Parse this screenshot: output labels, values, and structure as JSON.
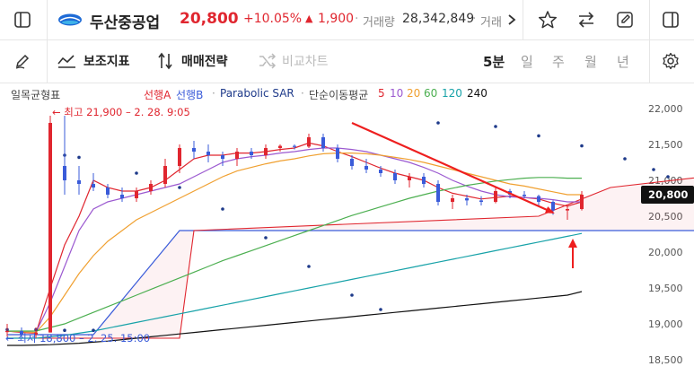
{
  "header": {
    "stock_name": "두산중공업",
    "price": "20,800",
    "change_pct": "+10.05%",
    "change_abs": "1,900",
    "volume_label": "거래량",
    "volume_value": "28,342,849",
    "amount_label": "거래"
  },
  "toolbar": {
    "indicators_label": "보조지표",
    "strategy_label": "매매전략",
    "compare_label": "비교차트",
    "periods": [
      "5분",
      "일",
      "주",
      "월",
      "년"
    ],
    "active_period": "5분"
  },
  "chart_data": {
    "type": "candlestick",
    "legend": {
      "ichimoku": "일목균형표",
      "span_a": "선행A",
      "span_b": "선행B",
      "sar": "Parabolic SAR",
      "sma_title": "단순이동평균",
      "sma_periods": [
        "5",
        "10",
        "20",
        "60",
        "120",
        "240"
      ]
    },
    "annotations": {
      "high": "← 최고 21,900 – 2. 28. 9:05",
      "low": "← 최저 18,800 – 2. 25. 15:00"
    },
    "current_price_label": "20,800",
    "ylim": [
      18400,
      22300
    ],
    "yticks": [
      "22,000",
      "21,500",
      "21,000",
      "20,500",
      "20,000",
      "19,500",
      "19,000",
      "18,500"
    ],
    "ytick_values": [
      22000,
      21500,
      21000,
      20500,
      20000,
      19500,
      19000,
      18500
    ],
    "candles": [
      [
        18900,
        19000,
        18820,
        18900
      ],
      [
        18900,
        18950,
        18820,
        18850
      ],
      [
        18850,
        18950,
        18800,
        18880
      ],
      [
        18880,
        21900,
        18880,
        21800
      ],
      [
        21200,
        21900,
        20800,
        21000
      ],
      [
        21000,
        21200,
        20800,
        20950
      ],
      [
        20950,
        21100,
        20850,
        20900
      ],
      [
        20900,
        20950,
        20750,
        20800
      ],
      [
        20800,
        20900,
        20700,
        20750
      ],
      [
        20750,
        20900,
        20700,
        20850
      ],
      [
        20850,
        21000,
        20800,
        20950
      ],
      [
        20950,
        21300,
        20900,
        21200
      ],
      [
        21200,
        21500,
        21100,
        21450
      ],
      [
        21450,
        21550,
        21300,
        21400
      ],
      [
        21400,
        21500,
        21250,
        21350
      ],
      [
        21350,
        21400,
        21200,
        21300
      ],
      [
        21300,
        21450,
        21200,
        21400
      ],
      [
        21400,
        21450,
        21300,
        21350
      ],
      [
        21350,
        21500,
        21300,
        21450
      ],
      [
        21450,
        21500,
        21400,
        21480
      ],
      [
        21480,
        21500,
        21430,
        21470
      ],
      [
        21470,
        21650,
        21450,
        21600
      ],
      [
        21600,
        21650,
        21400,
        21450
      ],
      [
        21450,
        21500,
        21250,
        21300
      ],
      [
        21300,
        21350,
        21150,
        21200
      ],
      [
        21200,
        21300,
        21100,
        21150
      ],
      [
        21150,
        21200,
        21050,
        21100
      ],
      [
        21100,
        21150,
        20950,
        21000
      ],
      [
        21000,
        21100,
        20900,
        21050
      ],
      [
        21050,
        21100,
        20900,
        20950
      ],
      [
        20950,
        21000,
        20650,
        20700
      ],
      [
        20700,
        20800,
        20600,
        20750
      ],
      [
        20750,
        20800,
        20650,
        20720
      ],
      [
        20720,
        20780,
        20650,
        20700
      ],
      [
        20700,
        20900,
        20680,
        20850
      ],
      [
        20850,
        20880,
        20750,
        20800
      ],
      [
        20800,
        20850,
        20750,
        20780
      ],
      [
        20780,
        20800,
        20650,
        20700
      ],
      [
        20700,
        20720,
        20520,
        20580
      ],
      [
        20580,
        20650,
        20450,
        20600
      ],
      [
        20600,
        20850,
        20580,
        20800
      ]
    ],
    "sar": [
      [
        21350,
        4
      ],
      [
        21320,
        5
      ],
      [
        21100,
        9
      ],
      [
        20900,
        12
      ],
      [
        20600,
        15
      ],
      [
        20200,
        18
      ],
      [
        19800,
        21
      ],
      [
        19400,
        24
      ],
      [
        19200,
        26
      ],
      [
        21800,
        30
      ],
      [
        21750,
        34
      ],
      [
        21620,
        37
      ],
      [
        21480,
        40
      ],
      [
        21300,
        43
      ],
      [
        21150,
        45
      ],
      [
        21050,
        46
      ],
      [
        20950,
        48
      ],
      [
        20880,
        51
      ],
      [
        20850,
        54
      ],
      [
        20820,
        57
      ],
      [
        20800,
        60
      ],
      [
        20780,
        63
      ],
      [
        20760,
        66
      ],
      [
        20740,
        69
      ]
    ],
    "sar_early": [
      [
        18920,
        0
      ],
      [
        18920,
        2
      ],
      [
        18910,
        4
      ],
      [
        18910,
        6
      ]
    ],
    "span_a": [
      [
        18850,
        0
      ],
      [
        18850,
        6
      ],
      [
        20300,
        12
      ],
      [
        20300,
        40
      ],
      [
        20300,
        45
      ],
      [
        20300,
        64
      ],
      [
        20400,
        66
      ],
      [
        21100,
        67
      ],
      [
        21150,
        72
      ]
    ],
    "span_b": [
      [
        18800,
        0
      ],
      [
        18800,
        12
      ],
      [
        20300,
        13
      ],
      [
        20500,
        37
      ],
      [
        20900,
        42
      ],
      [
        21200,
        55
      ],
      [
        21200,
        66
      ],
      [
        21050,
        72
      ]
    ],
    "ma_lines": [
      {
        "name": "5",
        "color": "#e0262f",
        "points": [
          18900,
          18880,
          18870,
          19500,
          20100,
          20500,
          21000,
          20900,
          20850,
          20850,
          20900,
          21000,
          21150,
          21300,
          21350,
          21350,
          21380,
          21380,
          21400,
          21430,
          21450,
          21520,
          21480,
          21400,
          21330,
          21250,
          21170,
          21100,
          21050,
          21000,
          20900,
          20820,
          20780,
          20740,
          20760,
          20780,
          20760,
          20740,
          20680,
          20640,
          20700
        ]
      },
      {
        "name": "10",
        "color": "#9b59d0",
        "points": [
          18900,
          18890,
          18880,
          19300,
          19800,
          20300,
          20600,
          20700,
          20750,
          20800,
          20850,
          20900,
          20950,
          21050,
          21150,
          21250,
          21300,
          21330,
          21350,
          21380,
          21400,
          21430,
          21450,
          21450,
          21430,
          21400,
          21350,
          21300,
          21250,
          21180,
          21100,
          21000,
          20920,
          20850,
          20800,
          20770,
          20760,
          20750,
          20730,
          20700,
          20700
        ]
      },
      {
        "name": "20",
        "color": "#f0a030",
        "points": [
          18900,
          18890,
          18880,
          19100,
          19400,
          19700,
          19950,
          20150,
          20300,
          20450,
          20550,
          20650,
          20750,
          20850,
          20950,
          21050,
          21130,
          21180,
          21230,
          21270,
          21300,
          21340,
          21370,
          21380,
          21380,
          21370,
          21350,
          21320,
          21290,
          21250,
          21200,
          21150,
          21100,
          21050,
          21000,
          20950,
          20920,
          20880,
          20840,
          20800,
          20800
        ]
      },
      {
        "name": "60",
        "color": "#4caf50",
        "points": [
          18900,
          18900,
          18900,
          18950,
          19000,
          19080,
          19160,
          19240,
          19320,
          19400,
          19480,
          19560,
          19640,
          19720,
          19800,
          19880,
          19950,
          20020,
          20090,
          20160,
          20230,
          20300,
          20370,
          20440,
          20510,
          20570,
          20630,
          20690,
          20750,
          20800,
          20850,
          20890,
          20930,
          20960,
          20990,
          21010,
          21030,
          21040,
          21040,
          21030,
          21030
        ]
      },
      {
        "name": "120",
        "color": "#17a2a8",
        "points": [
          18800,
          18800,
          18800,
          18820,
          18840,
          18870,
          18900,
          18940,
          18980,
          19020,
          19060,
          19100,
          19140,
          19180,
          19220,
          19260,
          19300,
          19340,
          19380,
          19420,
          19460,
          19500,
          19540,
          19580,
          19620,
          19660,
          19700,
          19740,
          19780,
          19820,
          19860,
          19900,
          19940,
          19980,
          20020,
          20060,
          20100,
          20140,
          20180,
          20220,
          20260
        ]
      },
      {
        "name": "240",
        "color": "#111111",
        "points": [
          18700,
          18700,
          18705,
          18710,
          18720,
          18730,
          18745,
          18760,
          18780,
          18800,
          18820,
          18840,
          18860,
          18880,
          18900,
          18920,
          18940,
          18960,
          18980,
          19000,
          19020,
          19040,
          19060,
          19080,
          19100,
          19120,
          19140,
          19160,
          19180,
          19200,
          19220,
          19240,
          19260,
          19280,
          19300,
          19320,
          19340,
          19360,
          19380,
          19400,
          19450
        ]
      }
    ],
    "trend_line": {
      "from": [
        21800,
        24
      ],
      "to": [
        20550,
        38
      ]
    }
  }
}
